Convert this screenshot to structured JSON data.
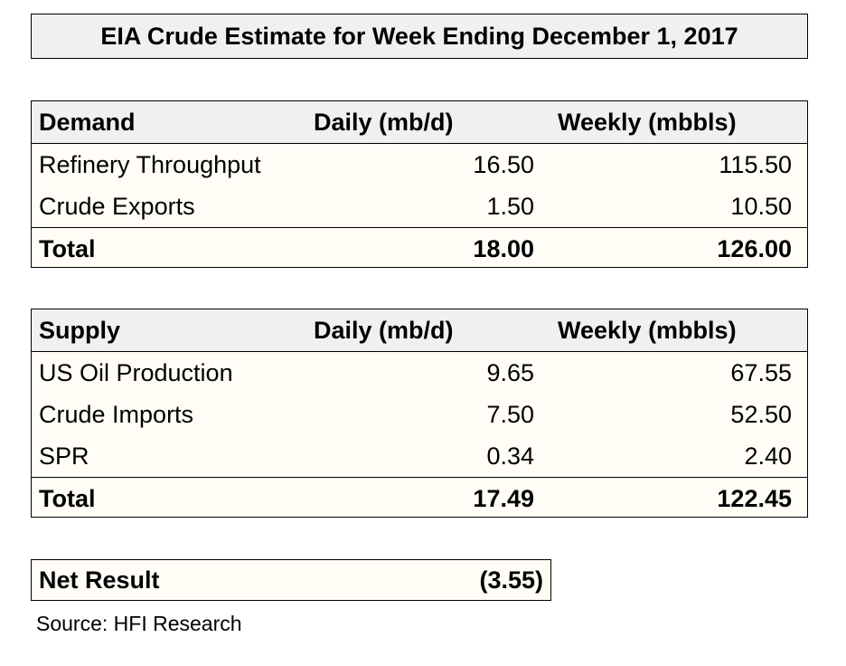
{
  "title": "EIA Crude Estimate for Week Ending December 1, 2017",
  "demand": {
    "header": {
      "label": "Demand",
      "daily": "Daily (mb/d)",
      "weekly": "Weekly (mbbls)"
    },
    "rows": [
      {
        "label": "Refinery Throughput",
        "daily": "16.50",
        "weekly": "115.50"
      },
      {
        "label": "Crude Exports",
        "daily": "1.50",
        "weekly": "10.50"
      }
    ],
    "total": {
      "label": "Total",
      "daily": "18.00",
      "weekly": "126.00"
    }
  },
  "supply": {
    "header": {
      "label": "Supply",
      "daily": "Daily (mb/d)",
      "weekly": "Weekly (mbbls)"
    },
    "rows": [
      {
        "label": "US Oil Production",
        "daily": "9.65",
        "weekly": "67.55"
      },
      {
        "label": "Crude Imports",
        "daily": "7.50",
        "weekly": "52.50"
      },
      {
        "label": "SPR",
        "daily": "0.34",
        "weekly": "2.40"
      }
    ],
    "total": {
      "label": "Total",
      "daily": "17.49",
      "weekly": "122.45"
    }
  },
  "net_result": {
    "label": "Net Result",
    "value": "(3.55)"
  },
  "source": "Source: HFI Research"
}
